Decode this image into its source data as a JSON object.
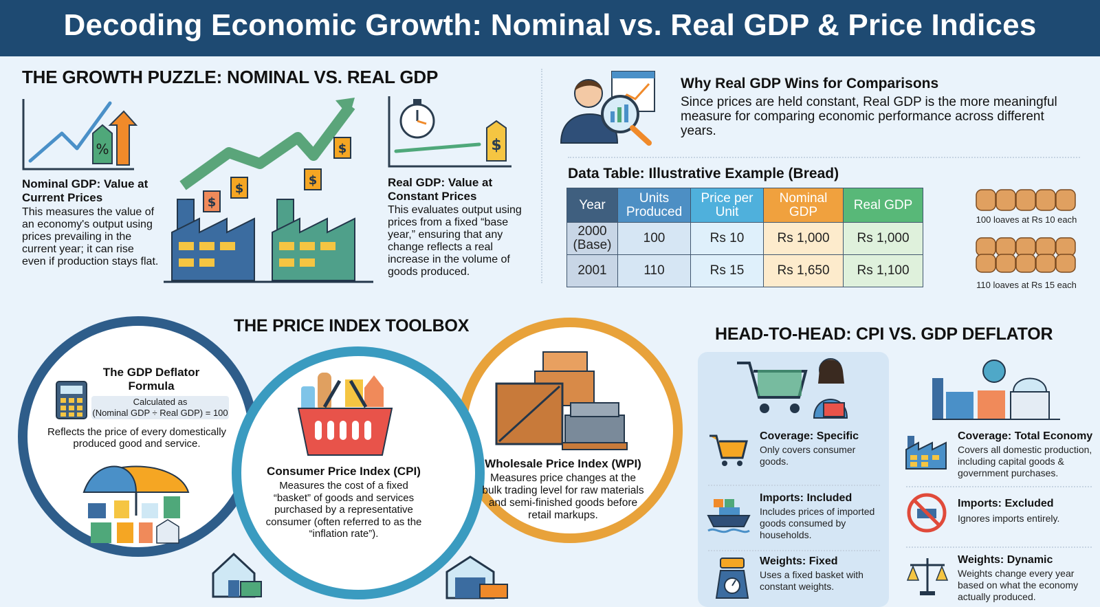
{
  "title": "Decoding Economic Growth: Nominal vs. Real GDP & Price Indices",
  "growth": {
    "heading": "THE GROWTH PUZZLE: NOMINAL VS. REAL GDP",
    "nominal_title": "Nominal GDP: Value at Current Prices",
    "nominal_desc": "This measures the value of an economy's output using prices prevailing in the current year; it can rise even if production stays flat.",
    "real_title": "Real GDP: Value at Constant Prices",
    "real_desc": "This evaluates output using prices from a fixed “base year,” ensuring that any change reflects a real increase in the volume of goods produced."
  },
  "why": {
    "title": "Why Real GDP Wins for Comparisons",
    "desc": "Since prices are held constant, Real GDP is the more meaningful measure for comparing economic performance across different years."
  },
  "table": {
    "title": "Data Table: Illustrative Example (Bread)",
    "headers": [
      "Year",
      "Units Produced",
      "Price per Unit",
      "Nominal GDP",
      "Real GDP"
    ],
    "rows": [
      [
        "2000 (Base)",
        "100",
        "Rs 10",
        "Rs 1,000",
        "Rs 1,000"
      ],
      [
        "2001",
        "110",
        "Rs 15",
        "Rs 1,650",
        "Rs 1,100"
      ]
    ],
    "caption1": "100 loaves at Rs 10 each",
    "caption2": "110 loaves at Rs 15 each"
  },
  "toolbox": {
    "heading": "THE PRICE INDEX TOOLBOX",
    "deflator_title": "The GDP Deflator Formula",
    "deflator_calc1": "Calculated as",
    "deflator_calc2": "(Nominal GDP ÷ Real GDP) = 100",
    "deflator_desc": "Reflects the price of every domestically produced good and service.",
    "cpi_title": "Consumer Price Index (CPI)",
    "cpi_desc": "Measures the cost of a fixed “basket” of goods and services purchased by a representative consumer (often referred to as the “inflation rate”).",
    "wpi_title": "Wholesale Price Index (WPI)",
    "wpi_desc": "Measures price changes at the bulk trading level for raw materials and semi-finished goods before retail markups."
  },
  "h2h": {
    "heading": "HEAD-TO-HEAD: CPI VS. GDP DEFLATOR",
    "cpi": [
      {
        "title": "Coverage: Specific",
        "desc": "Only covers consumer goods."
      },
      {
        "title": "Imports: Included",
        "desc": "Includes prices of imported goods consumed by households."
      },
      {
        "title": "Weights: Fixed",
        "desc": "Uses a fixed basket with constant weights."
      }
    ],
    "deflator": [
      {
        "title": "Coverage: Total Economy",
        "desc": "Covers all domestic production, including capital goods & government purchases."
      },
      {
        "title": "Imports: Excluded",
        "desc": "Ignores imports entirely."
      },
      {
        "title": "Weights: Dynamic",
        "desc": "Weights change every year based on what the economy actually produced."
      }
    ]
  }
}
